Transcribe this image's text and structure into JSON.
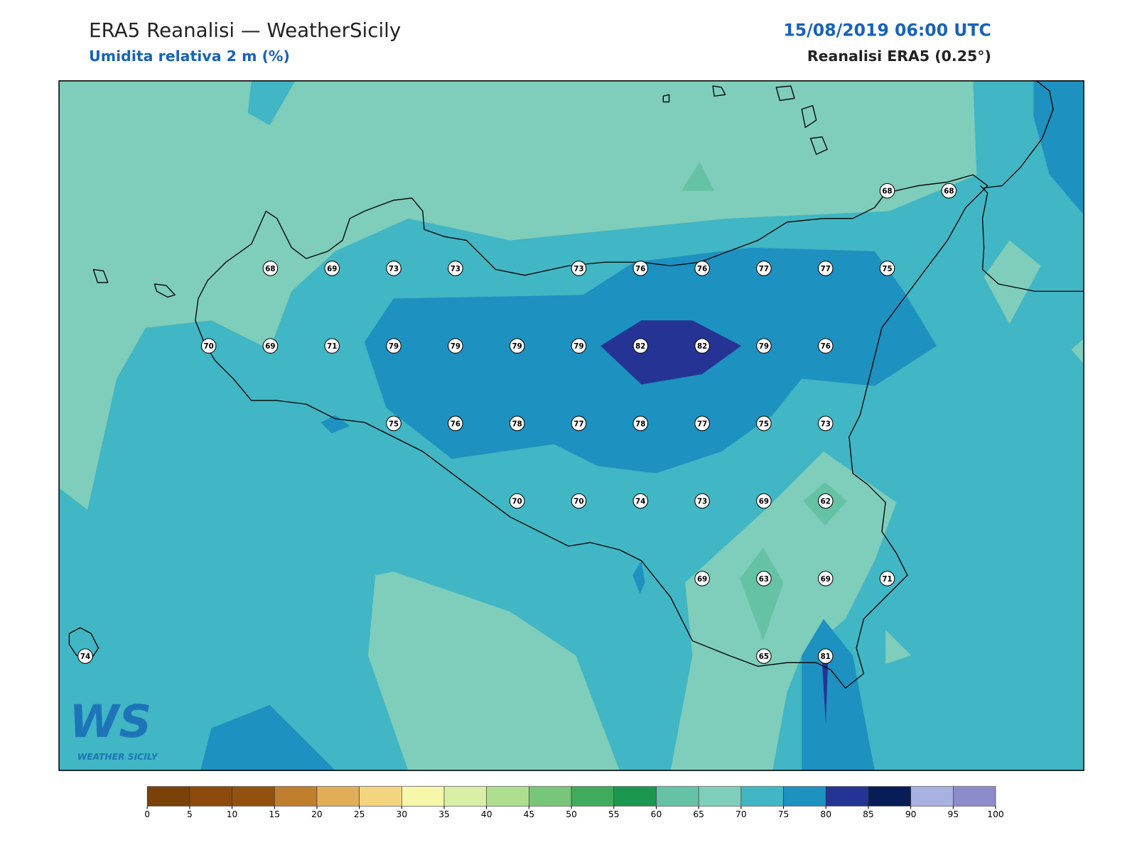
{
  "header": {
    "title": "ERA5 Reanalisi — WeatherSicily",
    "subtitle": "Umidita relativa 2 m (%)",
    "datetime": "15/08/2019 06:00 UTC",
    "source": "Reanalisi ERA5 (0.25°)"
  },
  "stations": [
    68,
    68,
    68,
    69,
    73,
    73,
    73,
    76,
    76,
    77,
    77,
    75,
    70,
    69,
    71,
    79,
    79,
    79,
    79,
    82,
    82,
    79,
    76,
    75,
    76,
    78,
    77,
    78,
    77,
    75,
    73,
    70,
    70,
    74,
    73,
    69,
    62,
    69,
    63,
    69,
    71,
    74,
    65,
    81
  ],
  "colorbar": {
    "ticks": [
      0,
      5,
      10,
      15,
      20,
      25,
      30,
      35,
      40,
      45,
      50,
      55,
      60,
      65,
      70,
      75,
      80,
      85,
      90,
      95,
      100
    ],
    "colors": [
      "#7a4108",
      "#8c4a0c",
      "#93510f",
      "#c07f2d",
      "#e0ae58",
      "#f2d57e",
      "#f7f7a9",
      "#d9efa6",
      "#addf8e",
      "#78c679",
      "#41ab5d",
      "#1a9850",
      "#66c2a4",
      "#7fcdbb",
      "#41b6c4",
      "#1d91c0",
      "#253494",
      "#081d58",
      "#a8b1e0",
      "#8c8ccb"
    ]
  },
  "logo": {
    "mark": "WS",
    "name": "WEATHER SICILY"
  }
}
